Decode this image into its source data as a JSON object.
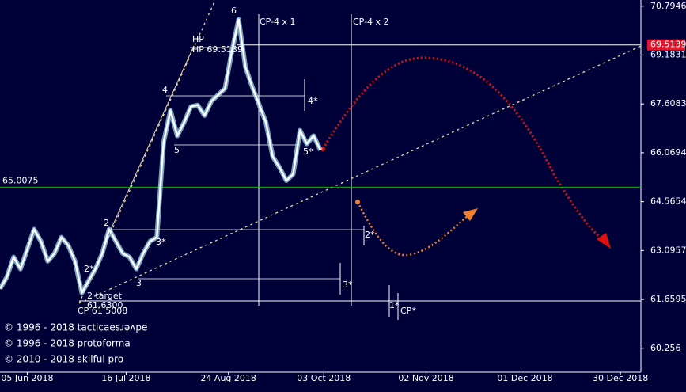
{
  "chart_data": {
    "type": "line",
    "log_y": true,
    "xlim": [
      0,
      188
    ],
    "ylim": [
      59.58,
      71.0
    ],
    "xticks": [
      {
        "value": 8,
        "label": "05 Jun 2018"
      },
      {
        "value": 37,
        "label": "16 Jul 2018"
      },
      {
        "value": 67,
        "label": "24 Aug 2018"
      },
      {
        "value": 95,
        "label": "03 Oct 2018"
      },
      {
        "value": 125,
        "label": "02 Nov 2018"
      },
      {
        "value": 154,
        "label": "01 Dec 2018"
      },
      {
        "value": 182,
        "label": "30 Dec 2018"
      }
    ],
    "yticks": [
      70.7946,
      69.1831,
      67.6083,
      66.0694,
      64.5654,
      63.0957,
      61.6595,
      60.256
    ],
    "x": [
      0,
      2,
      4,
      6,
      8,
      10,
      12,
      14,
      16,
      18,
      20,
      22,
      24,
      26,
      28,
      30,
      32,
      34,
      36,
      38,
      40,
      42,
      44,
      46,
      48,
      50,
      52,
      54,
      56,
      58,
      60,
      62,
      64,
      66,
      68,
      70,
      72,
      74,
      76,
      78,
      80,
      82,
      84,
      86,
      88,
      90,
      92,
      94
    ],
    "series": [
      {
        "color": "#ffffff",
        "values": [
          61.97,
          62.31,
          62.9,
          62.55,
          63.13,
          63.73,
          63.37,
          62.78,
          63.01,
          63.49,
          63.25,
          62.78,
          61.85,
          62.2,
          62.55,
          63.01,
          63.73,
          63.37,
          63.01,
          62.9,
          62.55,
          63.01,
          63.37,
          63.49,
          66.4,
          67.4,
          66.6,
          67.02,
          67.52,
          67.57,
          67.24,
          67.69,
          67.9,
          68.1,
          69.3,
          70.35,
          68.79,
          68.15,
          67.59,
          67.02,
          65.95,
          65.61,
          65.21,
          65.41,
          66.77,
          66.35,
          66.6,
          66.15
        ]
      }
    ],
    "levels": [
      {
        "value": 65.0075,
        "label": "65.0075",
        "color": "#00c000"
      },
      {
        "value": 69.5139,
        "label": "69.5139",
        "color": "#e0162b"
      }
    ],
    "annotations": [
      "6",
      "4",
      "5",
      "2",
      "3",
      "2*",
      "3*",
      "4*",
      "5*",
      "2*",
      "3*",
      "1*",
      "CP*",
      "HP",
      "HP 69.5139",
      "2 target",
      "61.6300",
      "CP 61.5008",
      "CP-4 x 1",
      "CP-4 x 2"
    ],
    "copyright": [
      "© 1996 - 2018 tacticaesɹǝʌpe",
      "© 1996 - 2018 protoforma",
      "© 2010 - 2018 skilful pro"
    ]
  }
}
